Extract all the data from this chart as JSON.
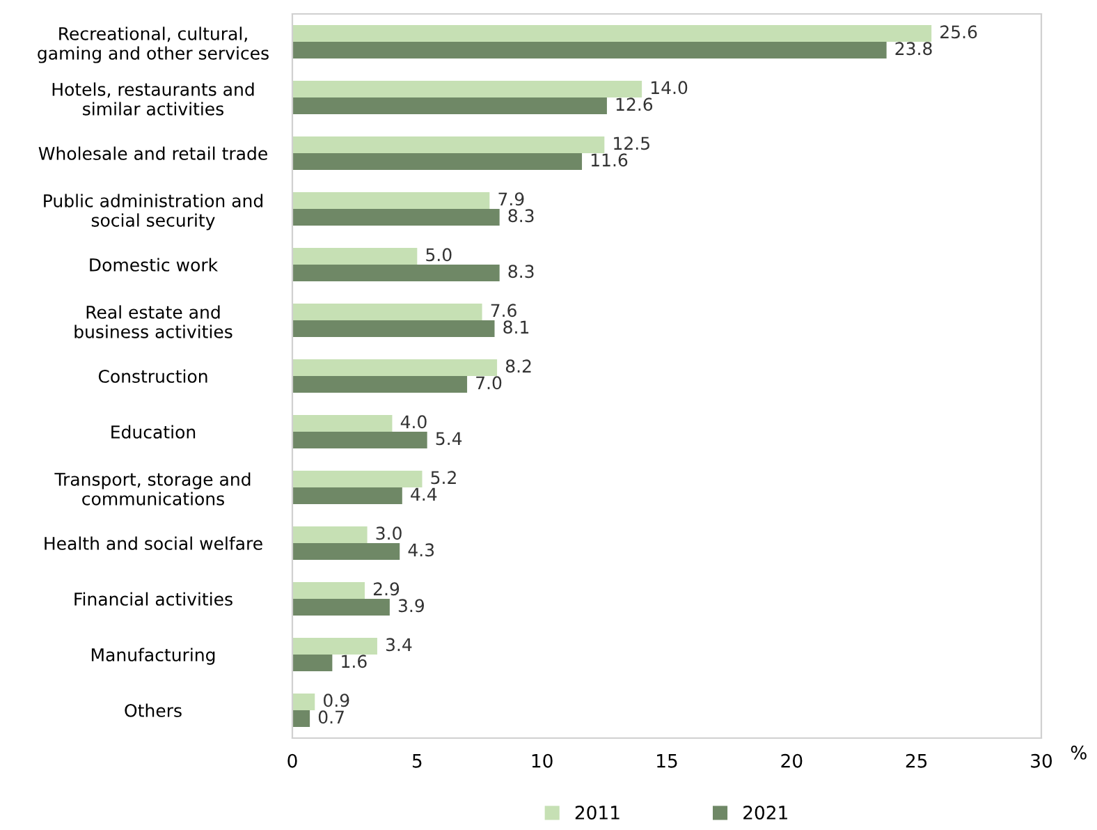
{
  "chart_data": {
    "type": "bar",
    "orientation": "horizontal",
    "categories": [
      "Recreational, cultural,\ngaming and other services",
      "Hotels, restaurants and\nsimilar activities",
      "Wholesale and retail trade",
      "Public administration and\nsocial security",
      "Domestic work",
      "Real estate and\nbusiness activities",
      "Construction",
      "Education",
      "Transport, storage and\ncommunications",
      "Health and social welfare",
      "Financial activities",
      "Manufacturing",
      "Others"
    ],
    "series": [
      {
        "name": "2011",
        "color": "#c6e0b4",
        "values": [
          25.6,
          14.0,
          12.5,
          7.9,
          5.0,
          7.6,
          8.2,
          4.0,
          5.2,
          3.0,
          2.9,
          3.4,
          0.9
        ],
        "value_labels": [
          "25.6",
          "14.0",
          "12.5",
          "7.9",
          "5.0",
          "7.6",
          "8.2",
          "4.0",
          "5.2",
          "3.0",
          "2.9",
          "3.4",
          "0.9"
        ]
      },
      {
        "name": "2021",
        "color": "#6f8866",
        "values": [
          23.8,
          12.6,
          11.6,
          8.3,
          8.3,
          8.1,
          7.0,
          5.4,
          4.4,
          4.3,
          3.9,
          1.6,
          0.7
        ],
        "value_labels": [
          "23.8",
          "12.6",
          "11.6",
          "8.3",
          "8.3",
          "8.1",
          "7.0",
          "5.4",
          "4.4",
          "4.3",
          "3.9",
          "1.6",
          "0.7"
        ]
      }
    ],
    "xlabel": "%",
    "xlim": [
      0,
      30
    ],
    "xticks": [
      0,
      5,
      10,
      15,
      20,
      25,
      30
    ],
    "legend": "bottom",
    "grid": false
  }
}
